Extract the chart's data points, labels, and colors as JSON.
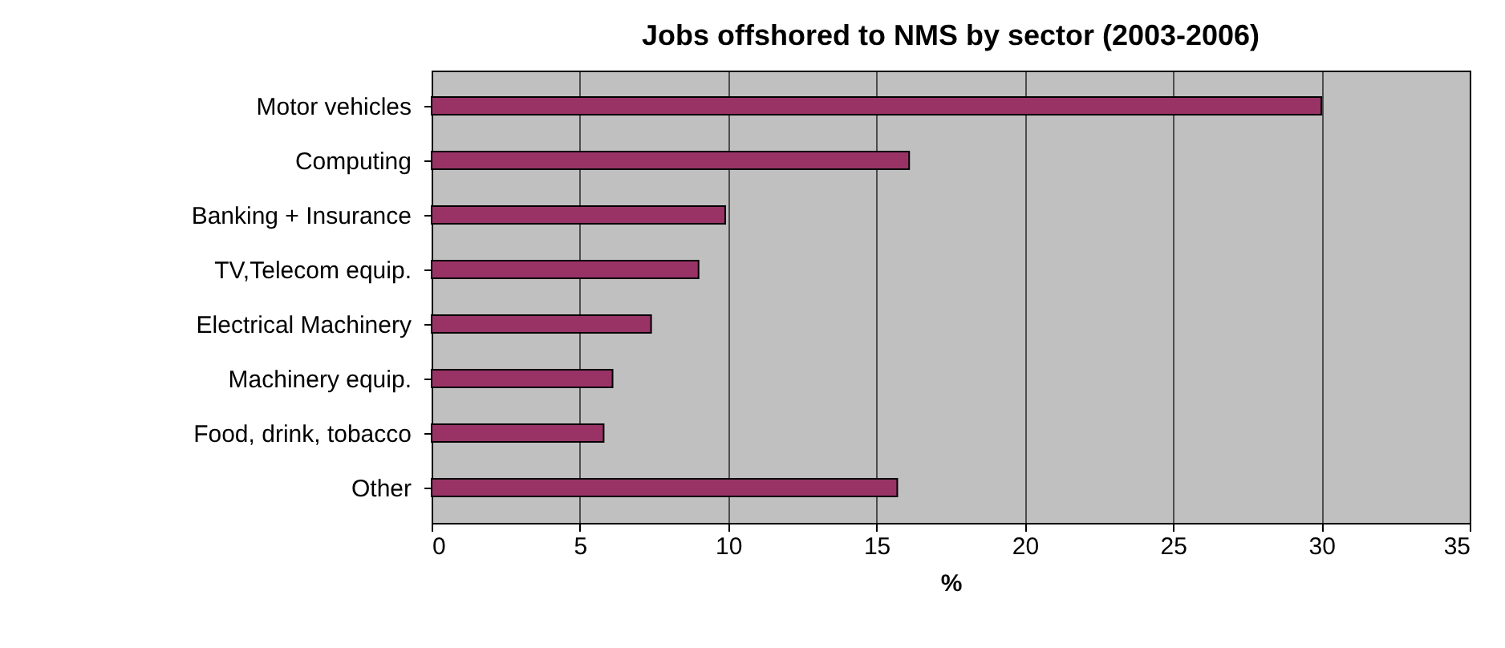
{
  "chart_data": {
    "type": "bar",
    "orientation": "horizontal",
    "title": "Jobs offshored to NMS by sector (2003-2006)",
    "xlabel": "%",
    "categories": [
      "Motor vehicles",
      "Computing",
      "Banking + Insurance",
      "TV,Telecom equip.",
      "Electrical Machinery",
      "Machinery equip.",
      "Food, drink, tobacco",
      "Other"
    ],
    "values": [
      30,
      16.1,
      9.9,
      9.0,
      7.4,
      6.1,
      5.8,
      15.7
    ],
    "color": "#993366",
    "xlim": [
      0,
      35
    ],
    "xticks": [
      0,
      5,
      10,
      15,
      20,
      25,
      30,
      35
    ],
    "grid": "x"
  }
}
